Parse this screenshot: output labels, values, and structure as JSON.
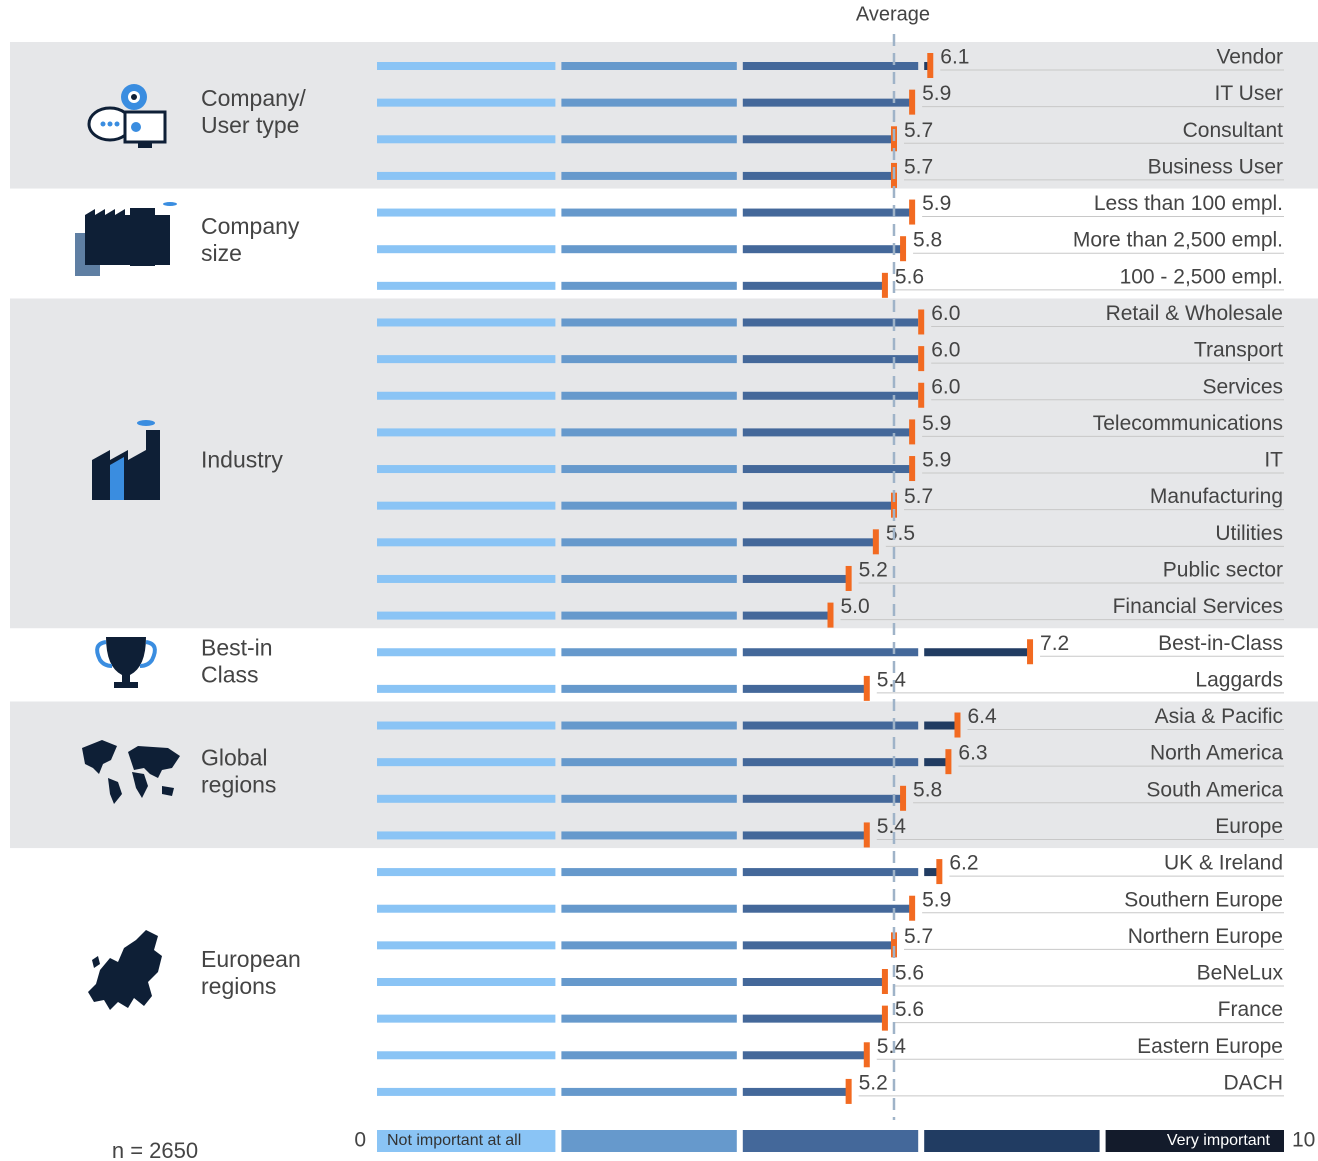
{
  "chart_data": {
    "type": "segmented-bar",
    "xlim": [
      0,
      10
    ],
    "xticks": [
      0,
      10
    ],
    "segment_colors": [
      "#8ac4f5",
      "#6699cc",
      "#44689a",
      "#213c62",
      "#131b2b"
    ],
    "marker_color": "#f26a21",
    "legend_labels": [
      "Not important at all",
      "Very important"
    ],
    "average": 5.7,
    "average_label": "Average",
    "note": "n = 2650",
    "groups": [
      {
        "label": [
          "Company/",
          "User type"
        ],
        "categories": [
          "Vendor",
          "IT User",
          "Consultant",
          "Business User"
        ],
        "values": [
          6.1,
          5.9,
          5.7,
          5.7
        ],
        "value_labels": [
          "6.1",
          "5.9",
          "5.7",
          "5.7"
        ]
      },
      {
        "label": [
          "Company",
          "size"
        ],
        "categories": [
          "Less than 100 empl.",
          "More than 2,500 empl.",
          "100 - 2,500 empl."
        ],
        "values": [
          5.9,
          5.8,
          5.6
        ],
        "value_labels": [
          "5.9",
          "5.8",
          "5.6"
        ]
      },
      {
        "label": [
          "Industry"
        ],
        "categories": [
          "Retail & Wholesale",
          "Transport",
          "Services",
          "Telecommunications",
          "IT",
          "Manufacturing",
          "Utilities",
          "Public sector",
          "Financial Services"
        ],
        "values": [
          6.0,
          6.0,
          6.0,
          5.9,
          5.9,
          5.7,
          5.5,
          5.2,
          5.0
        ],
        "value_labels": [
          "6.0",
          "6.0",
          "6.0",
          "5.9",
          "5.9",
          "5.7",
          "5.5",
          "5.2",
          "5.0"
        ]
      },
      {
        "label": [
          "Best-in",
          "Class"
        ],
        "categories": [
          "Best-in-Class",
          "Laggards"
        ],
        "values": [
          7.2,
          5.4
        ],
        "value_labels": [
          "7.2",
          "5.4"
        ]
      },
      {
        "label": [
          "Global",
          "regions"
        ],
        "categories": [
          "Asia & Pacific",
          "North America",
          "South America",
          "Europe"
        ],
        "values": [
          6.4,
          6.3,
          5.8,
          5.4
        ],
        "value_labels": [
          "6.4",
          "6.3",
          "5.8",
          "5.4"
        ]
      },
      {
        "label": [
          "European",
          "regions"
        ],
        "categories": [
          "UK & Ireland",
          "Southern Europe",
          "Northern Europe",
          "BeNeLux",
          "France",
          "Eastern Europe",
          "DACH"
        ],
        "values": [
          6.2,
          5.9,
          5.7,
          5.6,
          5.6,
          5.4,
          5.2
        ],
        "value_labels": [
          "6.2",
          "5.9",
          "5.7",
          "5.6",
          "5.6",
          "5.4",
          "5.2"
        ]
      }
    ]
  }
}
